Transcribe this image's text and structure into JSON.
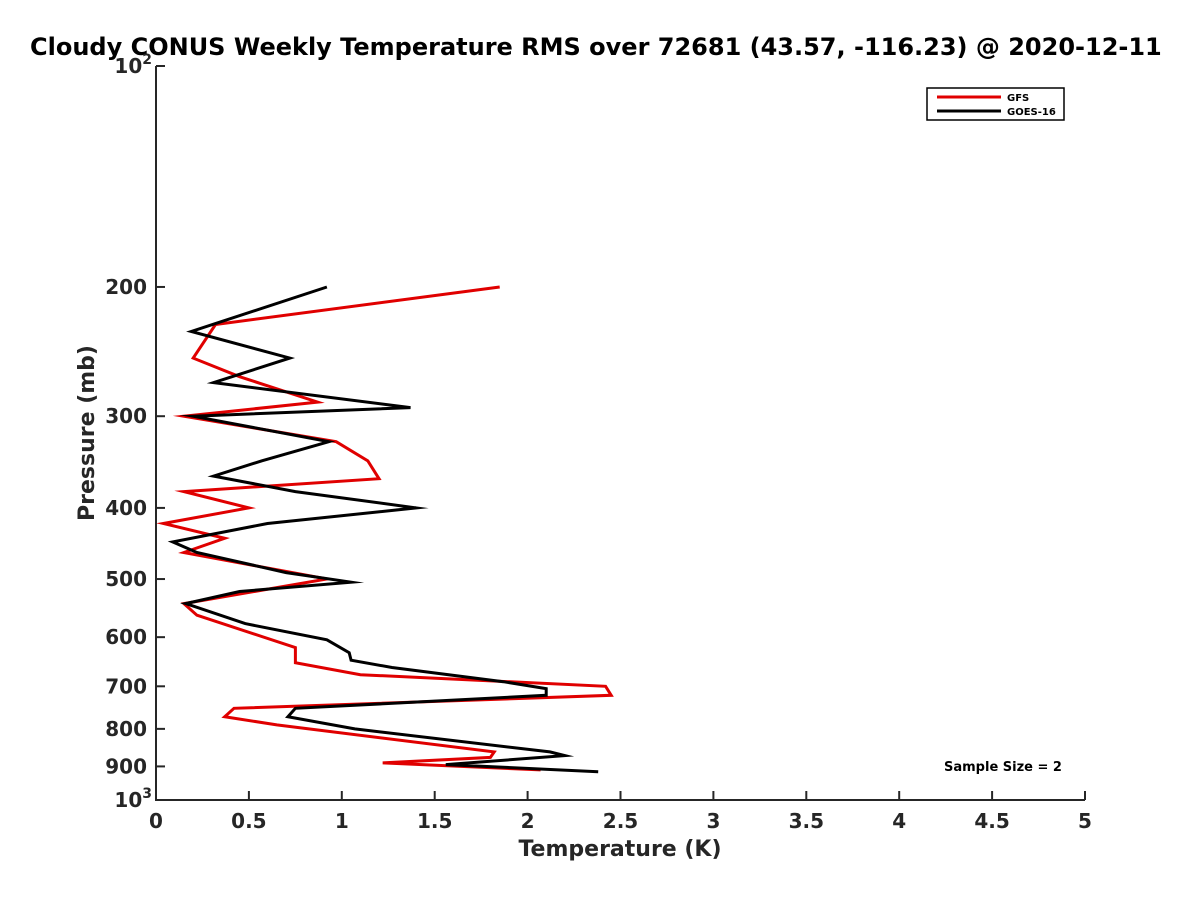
{
  "chart_data": {
    "type": "line",
    "title": "Cloudy CONUS Weekly Temperature RMS over 72681 (43.57, -116.23) @ 2020-12-11",
    "xlabel": "Temperature (K)",
    "ylabel": "Pressure (mb)",
    "xlim": [
      0,
      5
    ],
    "ylim": [
      1000,
      100
    ],
    "yscale": "log",
    "y_reversed": true,
    "x_ticks": [
      {
        "v": 0,
        "label": "0"
      },
      {
        "v": 0.5,
        "label": "0.5"
      },
      {
        "v": 1,
        "label": "1"
      },
      {
        "v": 1.5,
        "label": "1.5"
      },
      {
        "v": 2,
        "label": "2"
      },
      {
        "v": 2.5,
        "label": "2.5"
      },
      {
        "v": 3,
        "label": "3"
      },
      {
        "v": 3.5,
        "label": "3.5"
      },
      {
        "v": 4,
        "label": "4"
      },
      {
        "v": 4.5,
        "label": "4.5"
      },
      {
        "v": 5,
        "label": "5"
      }
    ],
    "y_ticks": [
      {
        "v": 100,
        "base": "10",
        "exp": "2"
      },
      {
        "v": 200,
        "label": "200"
      },
      {
        "v": 300,
        "label": "300"
      },
      {
        "v": 400,
        "label": "400"
      },
      {
        "v": 500,
        "label": "500"
      },
      {
        "v": 600,
        "label": "600"
      },
      {
        "v": 700,
        "label": "700"
      },
      {
        "v": 800,
        "label": "800"
      },
      {
        "v": 900,
        "label": "900"
      },
      {
        "v": 1000,
        "base": "10",
        "exp": "3"
      }
    ],
    "legend_position": "top-right",
    "annotation": "Sample Size = 2",
    "series": [
      {
        "name": "GFS",
        "color": "#e00000",
        "points": [
          [
            1.85,
            200
          ],
          [
            0.32,
            225
          ],
          [
            0.2,
            250
          ],
          [
            0.45,
            265
          ],
          [
            0.87,
            287
          ],
          [
            0.15,
            300
          ],
          [
            0.97,
            325
          ],
          [
            1.14,
            345
          ],
          [
            1.2,
            365
          ],
          [
            0.15,
            380
          ],
          [
            0.5,
            400
          ],
          [
            0.04,
            420
          ],
          [
            0.37,
            440
          ],
          [
            0.15,
            460
          ],
          [
            0.92,
            500
          ],
          [
            0.15,
            540
          ],
          [
            0.22,
            560
          ],
          [
            0.75,
            620
          ],
          [
            0.75,
            650
          ],
          [
            1.1,
            675
          ],
          [
            2.42,
            700
          ],
          [
            2.45,
            720
          ],
          [
            0.42,
            750
          ],
          [
            0.37,
            770
          ],
          [
            0.65,
            790
          ],
          [
            1.82,
            860
          ],
          [
            1.8,
            875
          ],
          [
            1.22,
            890
          ],
          [
            2.07,
            910
          ]
        ]
      },
      {
        "name": "GOES-16",
        "color": "#000000",
        "points": [
          [
            0.92,
            200
          ],
          [
            0.19,
            230
          ],
          [
            0.72,
            250
          ],
          [
            0.31,
            270
          ],
          [
            1.37,
            292
          ],
          [
            0.2,
            300
          ],
          [
            0.93,
            325
          ],
          [
            0.57,
            345
          ],
          [
            0.31,
            362
          ],
          [
            0.75,
            380
          ],
          [
            1.4,
            400
          ],
          [
            0.6,
            420
          ],
          [
            0.09,
            445
          ],
          [
            0.22,
            460
          ],
          [
            0.7,
            490
          ],
          [
            1.05,
            505
          ],
          [
            0.45,
            520
          ],
          [
            0.16,
            540
          ],
          [
            0.48,
            575
          ],
          [
            0.92,
            605
          ],
          [
            1.04,
            630
          ],
          [
            1.05,
            645
          ],
          [
            1.27,
            660
          ],
          [
            1.87,
            690
          ],
          [
            2.1,
            705
          ],
          [
            2.1,
            720
          ],
          [
            0.75,
            750
          ],
          [
            0.71,
            770
          ],
          [
            1.07,
            800
          ],
          [
            2.12,
            860
          ],
          [
            2.2,
            870
          ],
          [
            1.56,
            895
          ],
          [
            2.38,
            915
          ]
        ]
      }
    ]
  }
}
